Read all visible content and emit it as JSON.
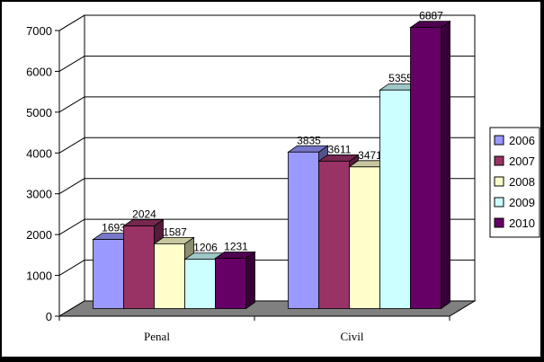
{
  "chart_data": {
    "type": "bar",
    "categories": [
      "Penal",
      "Civil"
    ],
    "series": [
      {
        "name": "2006",
        "values": [
          1693,
          3835
        ]
      },
      {
        "name": "2007",
        "values": [
          2024,
          3611
        ]
      },
      {
        "name": "2008",
        "values": [
          1587,
          3471
        ]
      },
      {
        "name": "2009",
        "values": [
          1206,
          5355
        ]
      },
      {
        "name": "2010",
        "values": [
          1231,
          6887
        ]
      }
    ],
    "data_labels": [
      [
        "1693",
        "2024",
        "1587",
        "1206",
        "1231"
      ],
      [
        "3835",
        "3611",
        "3471",
        "5355",
        "6887"
      ]
    ],
    "y_ticks": [
      "0",
      "1000",
      "2000",
      "3000",
      "4000",
      "5000",
      "6000",
      "7000"
    ],
    "ylim": [
      0,
      7000
    ],
    "grid": true,
    "legend_position": "right",
    "style": "3d-clustered-column",
    "colors": {
      "2006": "#9999ff",
      "2007": "#993366",
      "2008": "#ffffcc",
      "2009": "#ccffff",
      "2010": "#660066",
      "floor": "#808080",
      "background": "#000000"
    }
  }
}
